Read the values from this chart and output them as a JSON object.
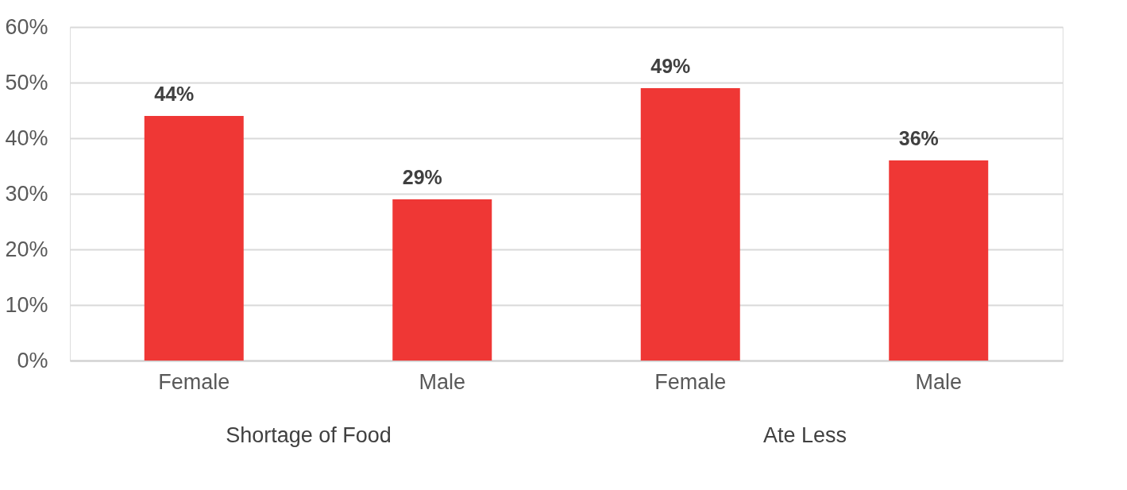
{
  "chart_data": {
    "type": "bar",
    "categories": [
      "Female",
      "Male",
      "Female",
      "Male"
    ],
    "values": [
      44,
      29,
      49,
      36
    ],
    "color": "#ef3735",
    "value_labels": [
      "44%",
      "29%",
      "49%",
      "36%"
    ],
    "ylim": [
      0,
      60
    ],
    "yticks": [
      {
        "value": 0,
        "label": "0%"
      },
      {
        "value": 10,
        "label": "10%"
      },
      {
        "value": 20,
        "label": "20%"
      },
      {
        "value": 30,
        "label": "30%"
      },
      {
        "value": 40,
        "label": "40%"
      },
      {
        "value": 50,
        "label": "50%"
      },
      {
        "value": 60,
        "label": "60%"
      }
    ],
    "grid": "y",
    "annotations": [
      "Shortage of Food",
      "Ate Less"
    ]
  }
}
